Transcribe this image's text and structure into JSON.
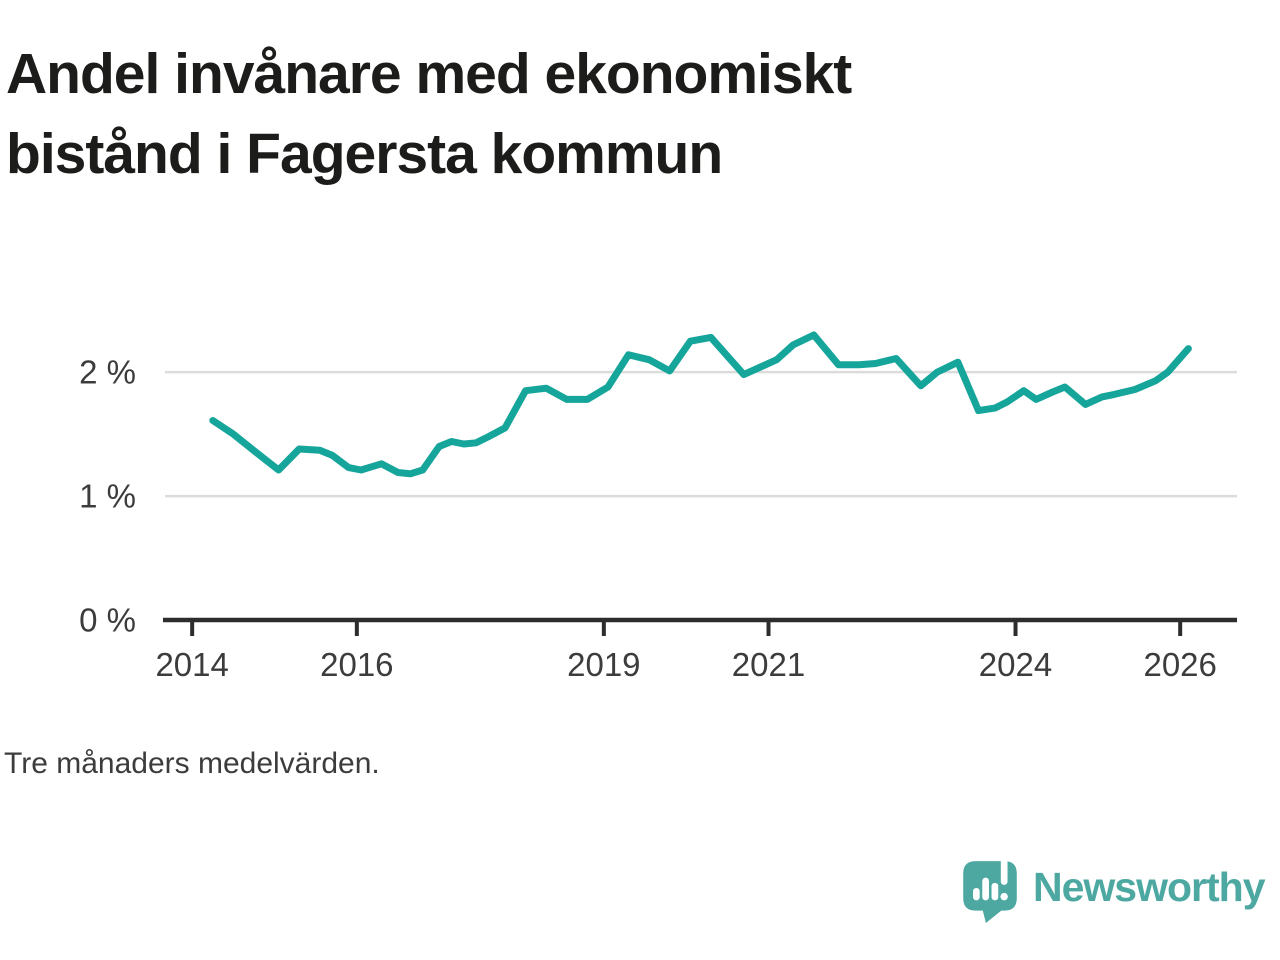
{
  "title": {
    "text": "Andel invånare med ekonomiskt bistånd i Fagersta kommun",
    "line1": "Andel invånare med ekonomiskt",
    "line2": "bistånd i Fagersta kommun"
  },
  "footnote": "Tre månaders medelvärden.",
  "branding": {
    "name": "Newsworthy",
    "icon": "bar-chart-speech-bubble-icon",
    "color": "#4DA8A2"
  },
  "colors": {
    "line": "#16A59B",
    "grid": "#DCDCDC",
    "axis": "#2D2D2D",
    "tick_text": "#3C3C3C",
    "title_text": "#1C1C1A",
    "background": "#FFFFFF"
  },
  "chart_data": {
    "type": "line",
    "title": "Andel invånare med ekonomiskt bistånd i Fagersta kommun",
    "note": "Tre månaders medelvärden.",
    "xlabel": "",
    "ylabel": "",
    "unit": "%",
    "grid": "horizontal",
    "legend": "none",
    "xlim": [
      2013.67,
      2026.69
    ],
    "ylim": [
      0,
      2.34
    ],
    "x_ticks": [
      {
        "value": 2014,
        "label": "2014"
      },
      {
        "value": 2016,
        "label": "2016"
      },
      {
        "value": 2019,
        "label": "2019"
      },
      {
        "value": 2021,
        "label": "2021"
      },
      {
        "value": 2024,
        "label": "2024"
      },
      {
        "value": 2026,
        "label": "2026"
      }
    ],
    "y_ticks": [
      {
        "value": 0,
        "label": "0 %"
      },
      {
        "value": 1,
        "label": "1 %"
      },
      {
        "value": 2,
        "label": "2 %"
      }
    ],
    "series": [
      {
        "name": "Andel invånare med ekonomiskt bistånd",
        "color": "#16A59B",
        "x": [
          2014.25,
          2014.5,
          2014.8,
          2015.05,
          2015.3,
          2015.55,
          2015.7,
          2015.9,
          2016.05,
          2016.3,
          2016.5,
          2016.65,
          2016.8,
          2017.0,
          2017.15,
          2017.3,
          2017.45,
          2017.6,
          2017.8,
          2018.05,
          2018.3,
          2018.55,
          2018.8,
          2019.05,
          2019.3,
          2019.55,
          2019.8,
          2020.05,
          2020.3,
          2020.7,
          2021.1,
          2021.3,
          2021.55,
          2021.85,
          2022.1,
          2022.3,
          2022.55,
          2022.85,
          2023.05,
          2023.3,
          2023.55,
          2023.75,
          2023.9,
          2024.1,
          2024.25,
          2024.45,
          2024.6,
          2024.85,
          2025.05,
          2025.2,
          2025.45,
          2025.7,
          2025.85,
          2026.1
        ],
        "y": [
          1.61,
          1.5,
          1.34,
          1.21,
          1.38,
          1.37,
          1.33,
          1.23,
          1.21,
          1.26,
          1.19,
          1.18,
          1.21,
          1.4,
          1.44,
          1.42,
          1.43,
          1.48,
          1.55,
          1.85,
          1.87,
          1.78,
          1.78,
          1.88,
          2.14,
          2.1,
          2.01,
          2.25,
          2.28,
          1.98,
          2.1,
          2.22,
          2.3,
          2.06,
          2.06,
          2.07,
          2.11,
          1.89,
          2.0,
          2.08,
          1.69,
          1.71,
          1.76,
          1.85,
          1.78,
          1.84,
          1.88,
          1.74,
          1.8,
          1.82,
          1.86,
          1.93,
          2.0,
          2.19
        ]
      }
    ]
  }
}
